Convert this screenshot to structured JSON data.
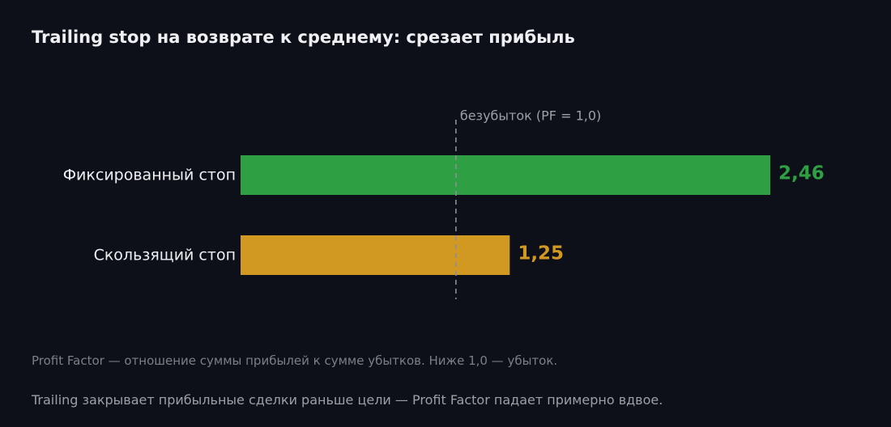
{
  "title": "Trailing stop на возврате к среднему: срезает прибыль",
  "chart_data": {
    "type": "bar",
    "orientation": "horizontal",
    "categories": [
      "Фиксированный стоп",
      "Скользящий стоп"
    ],
    "values": [
      2.46,
      1.25
    ],
    "value_labels": [
      "2,46",
      "1,25"
    ],
    "colors": [
      "#2ea043",
      "#d29922"
    ],
    "xlim": [
      0,
      2.46
    ],
    "reference_line": {
      "value": 1.0,
      "label": "безубыток (PF = 1,0)",
      "color": "#8b9099"
    },
    "title": "Trailing stop на возврате к среднему: срезает прибыль",
    "xlabel": "",
    "ylabel": "",
    "grid": false
  },
  "notes": [
    "Profit Factor — отношение суммы прибылей к сумме убытков. Ниже 1,0 — убыток.",
    "Trailing закрывает прибыльные сделки раньше цели — Profit Factor падает примерно вдвое."
  ]
}
